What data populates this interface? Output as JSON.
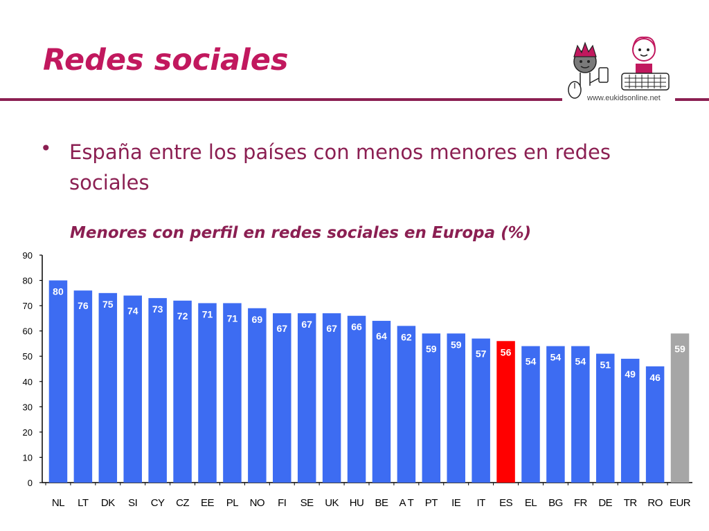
{
  "header": {
    "title": "Redes sociales",
    "logo_url": "www.eukidsonline.net"
  },
  "content": {
    "bullet": "España entre los países con menos menores en redes sociales"
  },
  "chart_data": {
    "type": "bar",
    "title": "Menores con perfil en redes sociales en Europa (%)",
    "xlabel": "",
    "ylabel": "",
    "ylim": [
      0,
      90
    ],
    "yticks": [
      0,
      10,
      20,
      30,
      40,
      50,
      60,
      70,
      80,
      90
    ],
    "grid": false,
    "categories": [
      "NL",
      "LT",
      "DK",
      "SI",
      "CY",
      "CZ",
      "EE",
      "PL",
      "NO",
      "FI",
      "SE",
      "UK",
      "HU",
      "BE",
      "AT",
      "PT",
      "IE",
      "IT",
      "ES",
      "EL",
      "BG",
      "FR",
      "DE",
      "TR",
      "RO",
      "EUR"
    ],
    "category_labels": [
      "NL",
      "LT",
      "DK",
      "SI",
      "CY",
      "CZ",
      "EE",
      "PL",
      "NO",
      "FI",
      "SE",
      "UK",
      "HU",
      "BE",
      "A T",
      "PT",
      "IE",
      "IT",
      "ES",
      "EL",
      "BG",
      "FR",
      "DE",
      "TR",
      "RO",
      "EUR"
    ],
    "values": [
      80,
      76,
      75,
      74,
      73,
      72,
      71,
      71,
      69,
      67,
      67,
      67,
      66,
      64,
      62,
      59,
      59,
      57,
      56,
      54,
      54,
      54,
      51,
      49,
      46,
      59
    ],
    "colors": {
      "default": "#3d6cf2",
      "highlight": "#ff0000",
      "average": "#a6a6a6",
      "label": "#ffffff",
      "axis": "#000000"
    },
    "highlight_category": "ES",
    "average_category": "EUR"
  }
}
